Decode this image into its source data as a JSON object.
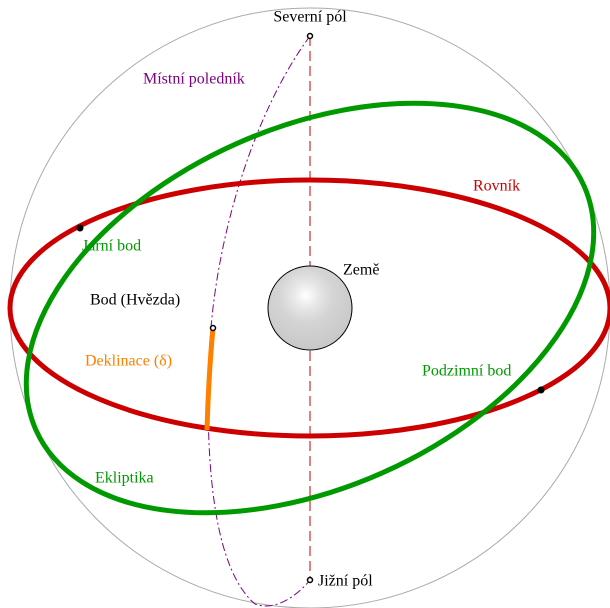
{
  "labels": {
    "north_pole": "Severní pól",
    "meridian": "Místní poledník",
    "equator": "Rovník",
    "vernal": "Jarní bod",
    "earth": "Země",
    "star": "Bod (Hvězda)",
    "declination": "Deklinace (δ)",
    "autumnal": "Podzimní bod",
    "ecliptic": "Ekliptika",
    "south_pole": "Jižní pól"
  }
}
